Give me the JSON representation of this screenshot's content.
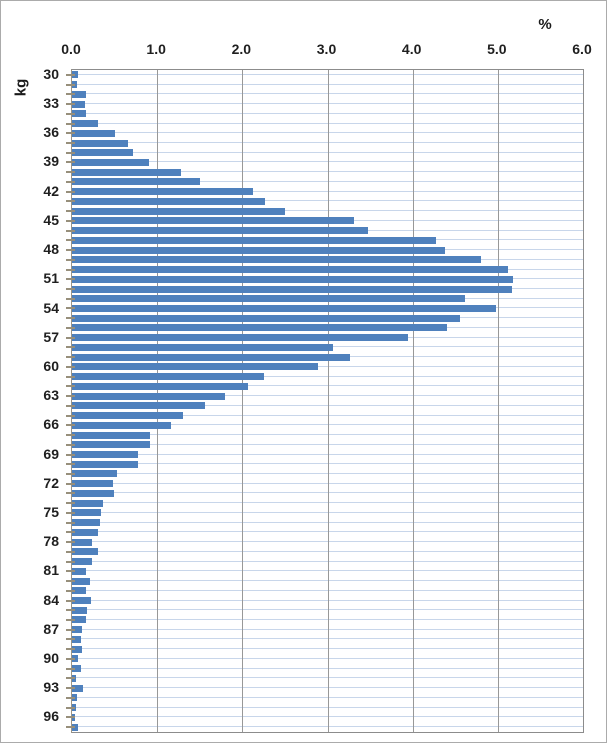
{
  "chart_data": {
    "type": "bar",
    "orientation": "horizontal",
    "xlabel": "%",
    "ylabel": "kg",
    "xlim": [
      0,
      6
    ],
    "x_ticks": [
      "0.0",
      "1.0",
      "2.0",
      "3.0",
      "4.0",
      "5.0",
      "6.0"
    ],
    "y_tick_labels": [
      "30",
      "33",
      "36",
      "39",
      "42",
      "45",
      "48",
      "51",
      "54",
      "57",
      "60",
      "63",
      "66",
      "69",
      "72",
      "75",
      "78",
      "81",
      "84",
      "87",
      "90",
      "93",
      "96"
    ],
    "grid": true,
    "legend": "none",
    "categories": [
      30,
      31,
      32,
      33,
      34,
      35,
      36,
      37,
      38,
      39,
      40,
      41,
      42,
      43,
      44,
      45,
      46,
      47,
      48,
      49,
      50,
      51,
      52,
      53,
      54,
      55,
      56,
      57,
      58,
      59,
      60,
      61,
      62,
      63,
      64,
      65,
      66,
      67,
      68,
      69,
      70,
      71,
      72,
      73,
      74,
      75,
      76,
      77,
      78,
      79,
      80,
      81,
      82,
      83,
      84,
      85,
      86,
      87,
      88,
      89,
      90,
      91,
      92,
      93,
      94,
      95,
      96,
      97
    ],
    "values": [
      0.07,
      0.06,
      0.16,
      0.15,
      0.17,
      0.3,
      0.51,
      0.66,
      0.72,
      0.9,
      1.28,
      1.5,
      2.13,
      2.27,
      2.5,
      3.31,
      3.48,
      4.27,
      4.38,
      4.8,
      5.12,
      5.18,
      5.17,
      4.62,
      4.98,
      4.56,
      4.4,
      3.95,
      3.07,
      3.27,
      2.89,
      2.25,
      2.07,
      1.8,
      1.56,
      1.3,
      1.16,
      0.91,
      0.92,
      0.77,
      0.77,
      0.53,
      0.48,
      0.49,
      0.36,
      0.34,
      0.33,
      0.31,
      0.24,
      0.3,
      0.24,
      0.16,
      0.21,
      0.16,
      0.22,
      0.18,
      0.16,
      0.12,
      0.11,
      0.12,
      0.07,
      0.1,
      0.05,
      0.13,
      0.06,
      0.05,
      0.04,
      0.07
    ],
    "colors": {
      "bar": "#4F81BD",
      "horizontal_gridline": "#C8D6EA",
      "vertical_gridline": "#989898",
      "plot_border": "#8C8C8C",
      "axis_line": "#9D9584",
      "tick_mark": "#978F7B",
      "label_text": "#1f1f1f",
      "frame_border": "#ABABAB"
    }
  }
}
